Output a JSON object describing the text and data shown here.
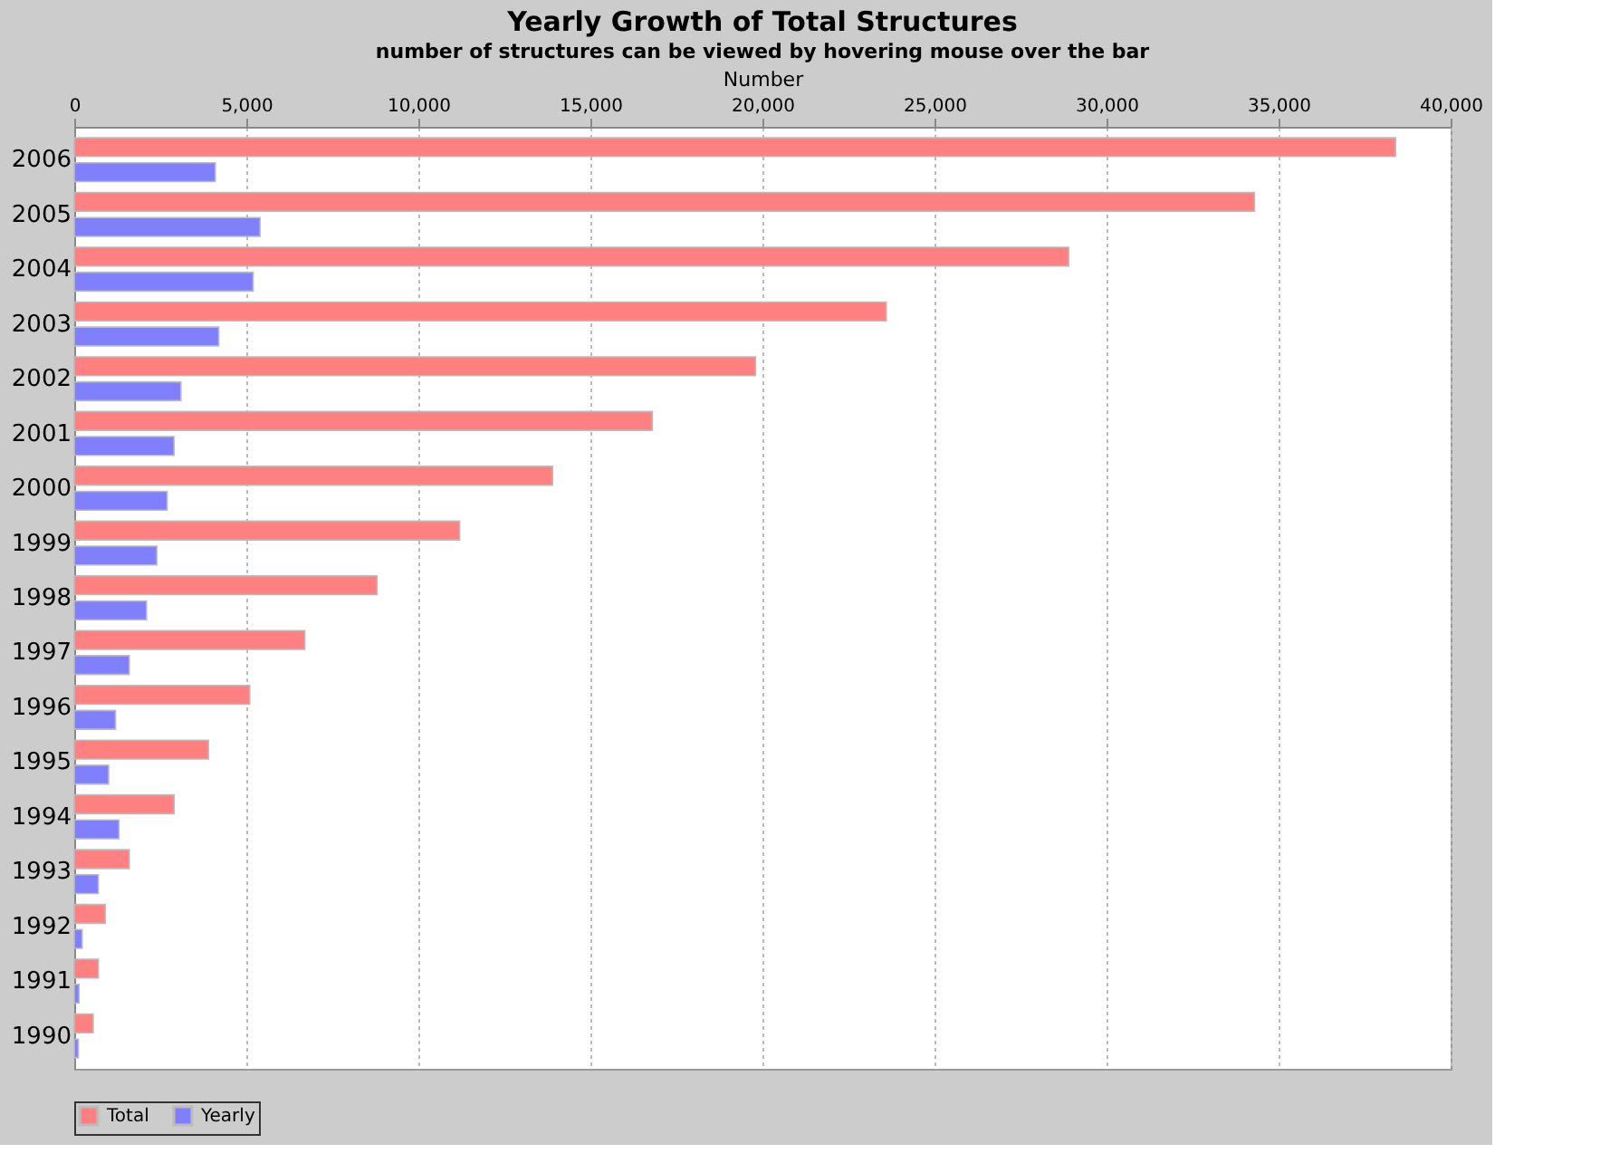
{
  "chart_data": {
    "type": "bar",
    "orientation": "horizontal",
    "title": "Yearly Growth of Total Structures",
    "subtitle": "number of structures can be viewed by hovering mouse over the bar",
    "xlabel": "Number",
    "categories": [
      "2006",
      "2005",
      "2004",
      "2003",
      "2002",
      "2001",
      "2000",
      "1999",
      "1998",
      "1997",
      "1996",
      "1995",
      "1994",
      "1993",
      "1992",
      "1991",
      "1990"
    ],
    "series": [
      {
        "name": "Total",
        "color": "#ff8080",
        "values": [
          38400,
          34300,
          28900,
          23600,
          19800,
          16800,
          13900,
          11200,
          8800,
          6700,
          5100,
          3900,
          2900,
          1600,
          900,
          700,
          550
        ]
      },
      {
        "name": "Yearly",
        "color": "#8080ff",
        "values": [
          4100,
          5400,
          5200,
          4200,
          3100,
          2900,
          2700,
          2400,
          2100,
          1600,
          1200,
          1000,
          1300,
          700,
          230,
          140,
          120
        ]
      }
    ],
    "xlim": [
      0,
      40000
    ],
    "xticks": [
      0,
      {
        "value": 5000,
        "label": "5,000"
      },
      {
        "value": 10000,
        "label": "10,000"
      },
      {
        "value": 15000,
        "label": "15,000"
      },
      {
        "value": 20000,
        "label": "20,000"
      },
      {
        "value": 25000,
        "label": "25,000"
      },
      {
        "value": 30000,
        "label": "30,000"
      },
      {
        "value": 35000,
        "label": "35,000"
      },
      {
        "value": 40000,
        "label": "40,000"
      }
    ],
    "grid": "x",
    "legend": "bottom"
  }
}
